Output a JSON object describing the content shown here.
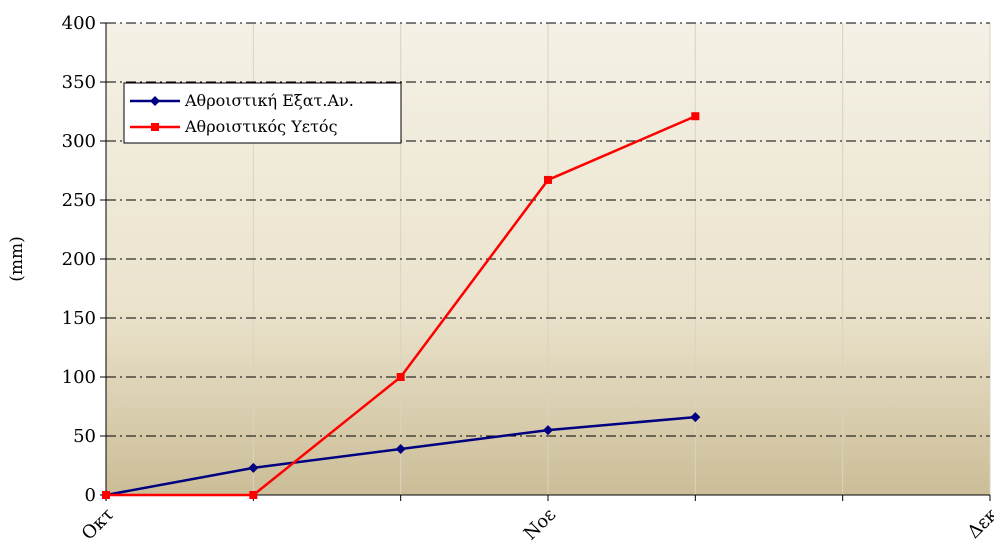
{
  "chart_data": {
    "type": "line",
    "title": "",
    "xlabel": "",
    "ylabel": "(mm)",
    "ylim": [
      0,
      400
    ],
    "yticks": [
      0,
      50,
      100,
      150,
      200,
      250,
      300,
      350,
      400
    ],
    "x_positions": [
      0,
      1,
      2,
      3,
      4
    ],
    "x_range": [
      0,
      6
    ],
    "x_tick_labels": [
      {
        "pos": 0,
        "label": "Οκτ"
      },
      {
        "pos": 3,
        "label": "Νοε"
      },
      {
        "pos": 6,
        "label": "Δεκ"
      }
    ],
    "grid": true,
    "legend_position": "top-left",
    "series": [
      {
        "name": "Αθροιστική Εξατ.Αν.",
        "color": "#000080",
        "marker": "diamond",
        "values": [
          0,
          23,
          39,
          55,
          66
        ]
      },
      {
        "name": "Αθροιστικός Υετός",
        "color": "#ff0000",
        "marker": "square",
        "values": [
          0,
          0,
          100,
          267,
          321
        ]
      }
    ]
  }
}
